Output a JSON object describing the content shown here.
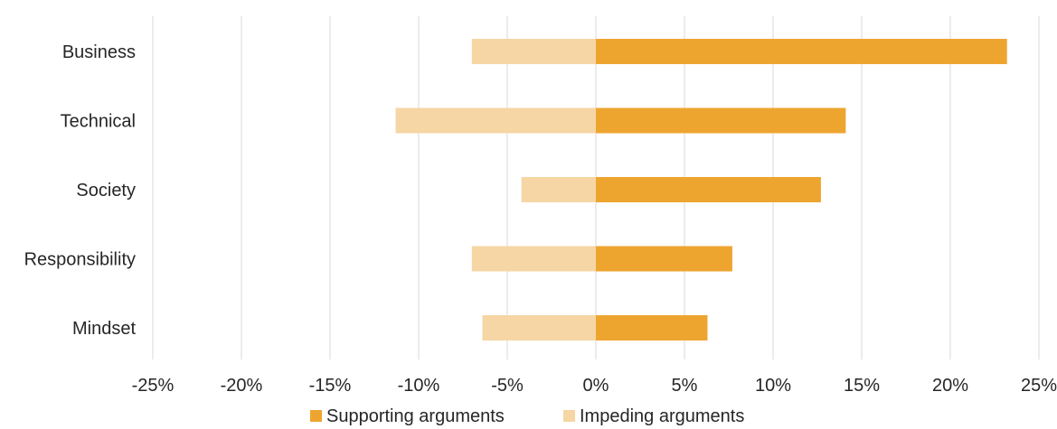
{
  "chart_data": {
    "type": "bar",
    "orientation": "horizontal",
    "stacked_diverging": true,
    "categories": [
      "Business",
      "Technical",
      "Society",
      "Responsibility",
      "Mindset"
    ],
    "series": [
      {
        "name": "Supporting arguments",
        "color": "#eea530",
        "values": [
          23.2,
          14.1,
          12.7,
          7.7,
          6.3
        ]
      },
      {
        "name": "Impeding arguments",
        "color": "#f6d6a5",
        "values": [
          -7.0,
          -11.3,
          -4.2,
          -7.0,
          -6.4
        ]
      }
    ],
    "xlim": [
      -25,
      25
    ],
    "xticks": [
      -25,
      -20,
      -15,
      -10,
      -5,
      0,
      5,
      10,
      15,
      20,
      25
    ],
    "tick_labels": [
      "-25%",
      "-20%",
      "-15%",
      "-10%",
      "-5%",
      "0%",
      "5%",
      "10%",
      "15%",
      "20%",
      "25%"
    ],
    "grid": "vertical",
    "legend_position": "bottom"
  }
}
